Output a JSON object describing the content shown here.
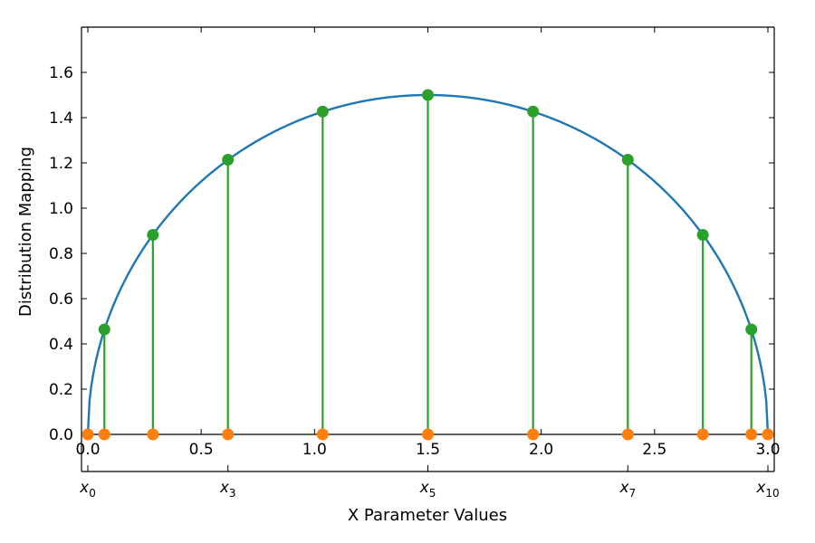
{
  "chart_data": {
    "type": "line",
    "xlabel": "X Parameter Values",
    "ylabel": "Distribution Mapping",
    "xlim": [
      -0.03,
      3.02
    ],
    "ylim": [
      -0.15,
      1.8
    ],
    "xticks": [
      "0.0",
      "0.5",
      "1.0",
      "1.5",
      "2.0",
      "2.5",
      "3.0"
    ],
    "yticks": [
      "0.0",
      "0.2",
      "0.4",
      "0.6",
      "0.8",
      "1.0",
      "1.2",
      "1.4",
      "1.6"
    ],
    "grid": false,
    "curve": {
      "equation": "y = sqrt(2.25 - (x - 1.5)^2)",
      "x_range": [
        0,
        3
      ],
      "color": "#1f77b4"
    },
    "nodes": {
      "x": [
        0.0,
        0.073,
        0.287,
        0.618,
        1.036,
        1.5,
        1.964,
        2.382,
        2.713,
        2.927,
        3.0
      ],
      "y": [
        0.0,
        0.464,
        0.882,
        1.214,
        1.427,
        1.5,
        1.427,
        1.214,
        0.882,
        0.464,
        0.0
      ],
      "stem_color": "#2ca02c",
      "top_marker_color": "#2ca02c",
      "base_marker_color": "#ff7f0e"
    },
    "secondary_axis_labels": [
      {
        "x": 0.0,
        "base": "x",
        "sub": "0"
      },
      {
        "x": 0.618,
        "base": "x",
        "sub": "3"
      },
      {
        "x": 1.5,
        "base": "x",
        "sub": "5"
      },
      {
        "x": 2.382,
        "base": "x",
        "sub": "7"
      },
      {
        "x": 3.0,
        "base": "x",
        "sub": "10"
      }
    ],
    "secondary_axis_ticks": [
      0.0,
      0.618,
      1.5,
      2.382,
      3.0
    ]
  }
}
